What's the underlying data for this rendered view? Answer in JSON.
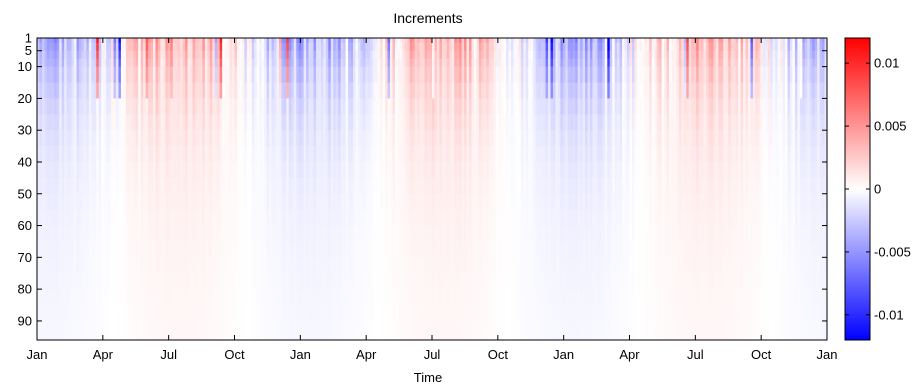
{
  "chart_data": {
    "type": "heatmap",
    "title": "Increments",
    "xlabel": "Time",
    "ylabel": "",
    "x_tick_labels": [
      "Jan",
      "Apr",
      "Jul",
      "Oct",
      "Jan",
      "Apr",
      "Jul",
      "Oct",
      "Jan",
      "Apr",
      "Jul",
      "Oct",
      "Jan"
    ],
    "y_ticks": [
      1,
      5,
      10,
      20,
      30,
      40,
      50,
      60,
      70,
      80,
      90
    ],
    "y_tick_labels": [
      "1",
      "5",
      "10",
      "20",
      "30",
      "40",
      "50",
      "60",
      "70",
      "80",
      "90"
    ],
    "y_range": [
      1,
      96
    ],
    "y_reversed": true,
    "time_range_months": [
      0,
      36
    ],
    "depth_levels": [
      1,
      2.5,
      5,
      7.5,
      10,
      15,
      20,
      25,
      30,
      35,
      40,
      45,
      50,
      55,
      60,
      65,
      70,
      75,
      80,
      85,
      90,
      96
    ],
    "color_limits": [
      -0.012,
      0.012
    ],
    "colorbar_ticks": [
      0.01,
      0.005,
      0,
      -0.005,
      -0.01
    ],
    "colorbar_tick_labels": [
      "0.01",
      "0.005",
      "0",
      "-0.005",
      "-0.01"
    ],
    "colormap": [
      "#0000ff",
      "#ffffff",
      "#ff0000"
    ],
    "grid": false,
    "colorbar": "right"
  }
}
